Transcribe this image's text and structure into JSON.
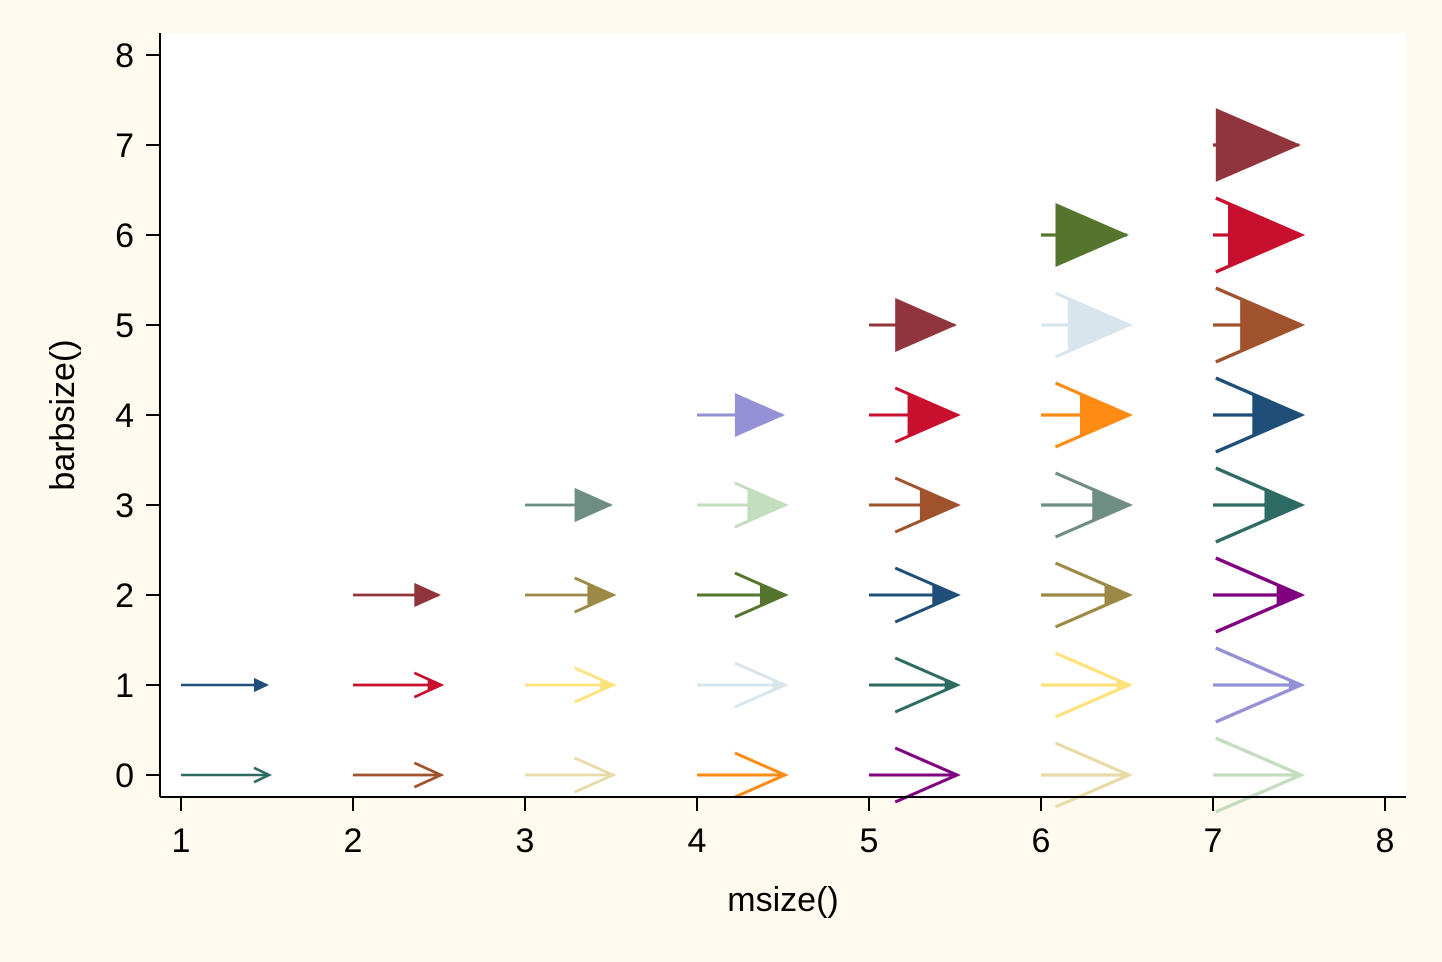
{
  "chart_data": {
    "type": "scatter",
    "title": "",
    "xlabel": "msize()",
    "ylabel": "barbsize()",
    "xlim": [
      1,
      8
    ],
    "ylim": [
      0,
      8
    ],
    "x_ticks": [
      "1",
      "2",
      "3",
      "4",
      "5",
      "6",
      "7",
      "8"
    ],
    "y_ticks": [
      "0",
      "1",
      "2",
      "3",
      "4",
      "5",
      "6",
      "7",
      "8"
    ],
    "grid": false,
    "legend": "none",
    "colors": {
      "background": "#fffaef",
      "plot_background": "#ffffff",
      "axis": "#000000"
    },
    "arrows": [
      {
        "msize": 1,
        "barbsize": 0,
        "color": "#2d6b63"
      },
      {
        "msize": 1,
        "barbsize": 1,
        "color": "#1f4e79"
      },
      {
        "msize": 2,
        "barbsize": 0,
        "color": "#a0522d"
      },
      {
        "msize": 2,
        "barbsize": 1,
        "color": "#c8102e"
      },
      {
        "msize": 2,
        "barbsize": 2,
        "color": "#90353b"
      },
      {
        "msize": 3,
        "barbsize": 0,
        "color": "#e8dba8"
      },
      {
        "msize": 3,
        "barbsize": 1,
        "color": "#ffe27a"
      },
      {
        "msize": 3,
        "barbsize": 2,
        "color": "#9c8847"
      },
      {
        "msize": 3,
        "barbsize": 3,
        "color": "#6e8e84"
      },
      {
        "msize": 4,
        "barbsize": 0,
        "color": "#ff8b14"
      },
      {
        "msize": 4,
        "barbsize": 1,
        "color": "#d9e5ec"
      },
      {
        "msize": 4,
        "barbsize": 2,
        "color": "#55752f"
      },
      {
        "msize": 4,
        "barbsize": 3,
        "color": "#c3ddbf"
      },
      {
        "msize": 4,
        "barbsize": 4,
        "color": "#9591d6"
      },
      {
        "msize": 5,
        "barbsize": 0,
        "color": "#800080"
      },
      {
        "msize": 5,
        "barbsize": 1,
        "color": "#2d6b63"
      },
      {
        "msize": 5,
        "barbsize": 2,
        "color": "#1f4e79"
      },
      {
        "msize": 5,
        "barbsize": 3,
        "color": "#a0522d"
      },
      {
        "msize": 5,
        "barbsize": 4,
        "color": "#c8102e"
      },
      {
        "msize": 5,
        "barbsize": 5,
        "color": "#90353b"
      },
      {
        "msize": 6,
        "barbsize": 0,
        "color": "#e8dba8"
      },
      {
        "msize": 6,
        "barbsize": 1,
        "color": "#ffe27a"
      },
      {
        "msize": 6,
        "barbsize": 2,
        "color": "#9c8847"
      },
      {
        "msize": 6,
        "barbsize": 3,
        "color": "#6e8e84"
      },
      {
        "msize": 6,
        "barbsize": 4,
        "color": "#ff8b14"
      },
      {
        "msize": 6,
        "barbsize": 5,
        "color": "#d9e5ec"
      },
      {
        "msize": 6,
        "barbsize": 6,
        "color": "#55752f"
      },
      {
        "msize": 7,
        "barbsize": 0,
        "color": "#c3ddbf"
      },
      {
        "msize": 7,
        "barbsize": 1,
        "color": "#9591d6"
      },
      {
        "msize": 7,
        "barbsize": 2,
        "color": "#800080"
      },
      {
        "msize": 7,
        "barbsize": 3,
        "color": "#2d6b63"
      },
      {
        "msize": 7,
        "barbsize": 4,
        "color": "#1f4e79"
      },
      {
        "msize": 7,
        "barbsize": 5,
        "color": "#a0522d"
      },
      {
        "msize": 7,
        "barbsize": 6,
        "color": "#c8102e"
      },
      {
        "msize": 7,
        "barbsize": 7,
        "color": "#90353b"
      }
    ]
  }
}
